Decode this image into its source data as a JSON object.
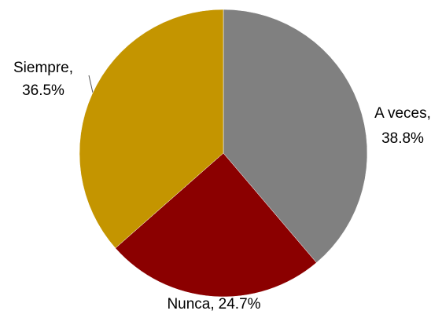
{
  "chart_data": {
    "type": "pie",
    "categories": [
      "A veces,",
      "Nunca,",
      "Siempre,"
    ],
    "values": [
      38.8,
      24.7,
      36.5
    ],
    "value_labels": [
      "38.8%",
      "24.7%",
      "36.5%"
    ],
    "colors": [
      "#808080",
      "#8b0000",
      "#c49500"
    ]
  }
}
